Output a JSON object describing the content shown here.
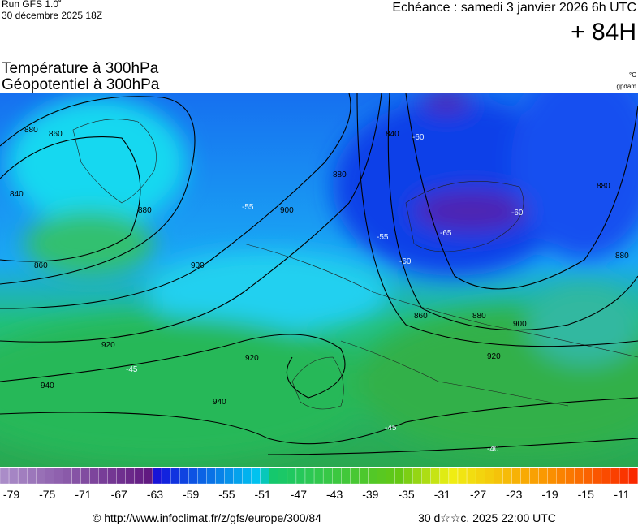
{
  "header": {
    "run": "Run GFS 1.0˚",
    "run_date": "30 décembre 2025 18Z",
    "echeance": "Echéance : samedi 3 janvier 2026 6h UTC",
    "lead": "+ 84H"
  },
  "titles": [
    "Température à 300hPa",
    "Géopotentiel à 300hPa"
  ],
  "units": [
    "°C",
    "gpdam"
  ],
  "scale": {
    "labels": [
      -79,
      -75,
      -71,
      -67,
      -63,
      -59,
      -55,
      -51,
      -47,
      -43,
      -39,
      -35,
      -31,
      -27,
      -23,
      -19,
      -15,
      -11
    ]
  },
  "contour_labels": [
    "880",
    "860",
    "840",
    "880",
    "860",
    "900",
    "900",
    "880",
    "920",
    "940",
    "940",
    "920",
    "840",
    "860",
    "880",
    "900",
    "920",
    "880",
    "880"
  ],
  "temperature_labels": [
    "-60",
    "-60",
    "-65",
    "-55",
    "-60",
    "-55",
    "-45",
    "-45",
    "-40"
  ],
  "footer": {
    "source": "© http://www.infoclimat.fr/z/gfs/europe/300/84",
    "timestamp": "30 d☆☆c. 2025 22:00 UTC"
  }
}
